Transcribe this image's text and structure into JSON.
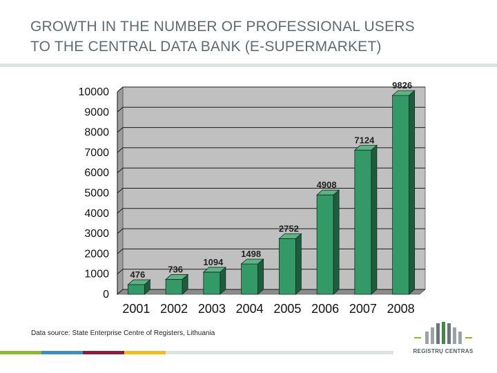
{
  "page": {
    "title_line1": "GROWTH IN THE NUMBER OF PROFESSIONAL USERS",
    "title_line2": "TO THE CENTRAL DATA BANK (E-SUPERMARKET)",
    "source": "Data source: State Enterprise Centre of Registers, Lithuania",
    "logo_text": "REGISTRŲ CENTRAS",
    "stripe_colors": [
      "#8dbb2f",
      "#3a8fc2",
      "#8e1c3d",
      "#f2bd1c"
    ]
  },
  "chart_data": {
    "type": "bar",
    "title": "",
    "xlabel": "",
    "ylabel": "",
    "categories": [
      "2001",
      "2002",
      "2003",
      "2004",
      "2005",
      "2006",
      "2007",
      "2008"
    ],
    "values": [
      476,
      736,
      1094,
      1498,
      2752,
      4908,
      7124,
      9826
    ],
    "data_labels": [
      "476",
      "736",
      "1094",
      "1498",
      "2752",
      "4908",
      "7124",
      "9826"
    ],
    "yticks": [
      0,
      1000,
      2000,
      3000,
      4000,
      5000,
      6000,
      7000,
      8000,
      9000,
      10000
    ],
    "ylim": [
      0,
      10000
    ],
    "grid": true,
    "bar_color": "#339966",
    "bar_side_color": "#1f5c3d",
    "bar_top_color": "#5db384",
    "wall_color": "#c0c0c0"
  }
}
